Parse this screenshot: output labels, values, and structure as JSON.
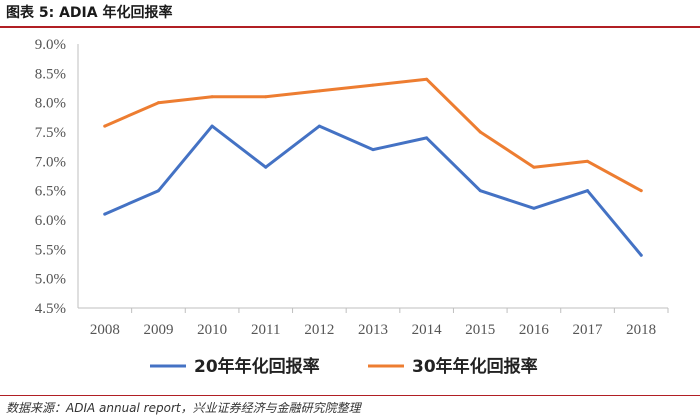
{
  "title": "图表 5: ADIA 年化回报率",
  "source": "数据来源：ADIA annual report，兴业证券经济与金融研究院整理",
  "chart_data": {
    "type": "line",
    "title": "图表 5: ADIA 年化回报率",
    "xlabel": "",
    "ylabel": "",
    "categories": [
      "2008",
      "2009",
      "2010",
      "2011",
      "2012",
      "2013",
      "2014",
      "2015",
      "2016",
      "2017",
      "2018"
    ],
    "ylim": [
      4.5,
      9.0
    ],
    "yticks": [
      "4.5%",
      "5.0%",
      "5.5%",
      "6.0%",
      "6.5%",
      "7.0%",
      "7.5%",
      "8.0%",
      "8.5%",
      "9.0%"
    ],
    "ytick_values": [
      4.5,
      5.0,
      5.5,
      6.0,
      6.5,
      7.0,
      7.5,
      8.0,
      8.5,
      9.0
    ],
    "grid": false,
    "legend_position": "bottom",
    "series": [
      {
        "name": "20年年化回报率",
        "color": "#4472c4",
        "values": [
          6.1,
          6.5,
          7.6,
          6.9,
          7.6,
          7.2,
          7.4,
          6.5,
          6.2,
          6.5,
          5.4
        ]
      },
      {
        "name": "30年年化回报率",
        "color": "#ed7d31",
        "values": [
          7.6,
          8.0,
          8.1,
          8.1,
          8.2,
          8.3,
          8.4,
          7.5,
          6.9,
          7.0,
          6.5
        ]
      }
    ]
  }
}
